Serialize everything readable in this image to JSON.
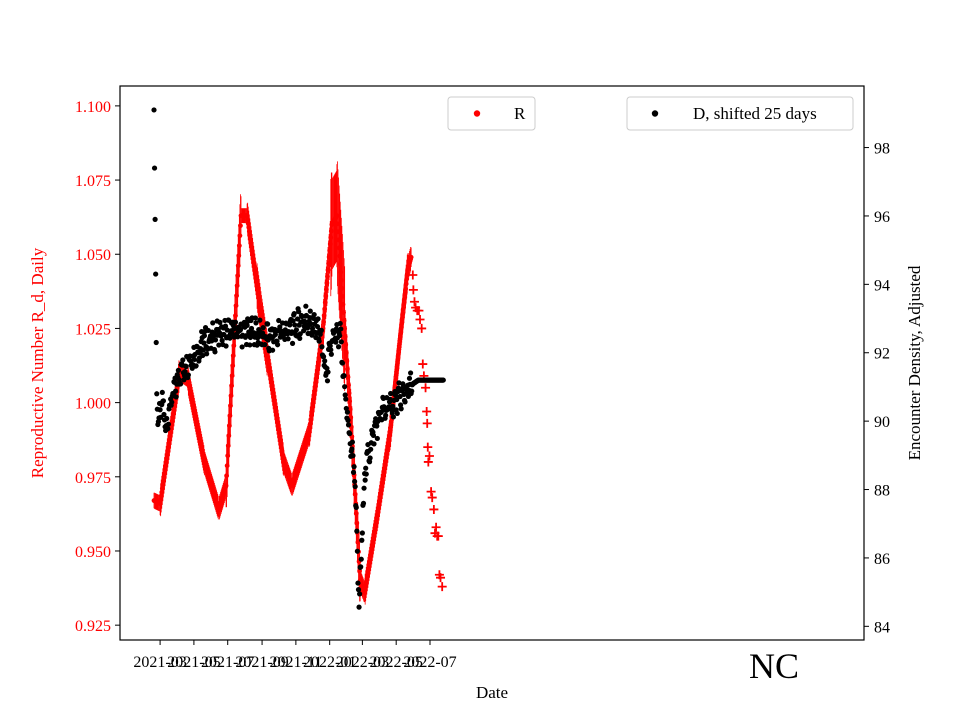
{
  "chart_data": {
    "type": "scatter",
    "state_label": "NC",
    "xlabel": "Date",
    "ylabel_left": "Reproductive Number R_d, Daily",
    "ylabel_right": "Encounter Density, Adjusted",
    "x_ticks": [
      "2021-03",
      "2021-05",
      "2021-07",
      "2021-09",
      "2021-11",
      "2022-01",
      "2022-03",
      "2022-05",
      "2022-07"
    ],
    "y_left_ticks": [
      "0.925",
      "0.950",
      "0.975",
      "1.000",
      "1.025",
      "1.050",
      "1.075",
      "1.100"
    ],
    "y_right_ticks": [
      "84",
      "86",
      "88",
      "90",
      "92",
      "94",
      "96",
      "98"
    ],
    "y_left_range": [
      0.92,
      1.1067
    ],
    "y_right_range": [
      83.6,
      99.8
    ],
    "legend": {
      "r_label": "R",
      "d_label": "D, shifted 25 days"
    },
    "colors": {
      "r_series": "#ff0000",
      "d_series": "#000000",
      "left_axis": "#ff0000"
    },
    "series_R_anchor_points": [
      [
        "2021-02-18",
        0.967
      ],
      [
        "2021-03-01",
        0.966
      ],
      [
        "2021-03-20",
        0.99
      ],
      [
        "2021-04-05",
        1.01
      ],
      [
        "2021-04-20",
        1.008
      ],
      [
        "2021-05-20",
        0.98
      ],
      [
        "2021-06-15",
        0.964
      ],
      [
        "2021-06-28",
        0.972
      ],
      [
        "2021-07-25",
        1.063
      ],
      [
        "2021-08-05",
        1.063
      ],
      [
        "2021-08-30",
        1.03
      ],
      [
        "2021-10-10",
        0.98
      ],
      [
        "2021-10-25",
        0.972
      ],
      [
        "2021-11-25",
        0.99
      ],
      [
        "2021-12-20",
        1.025
      ],
      [
        "2022-01-05",
        1.06
      ],
      [
        "2022-01-14",
        1.063
      ],
      [
        "2022-02-08",
        0.995
      ],
      [
        "2022-02-25",
        0.94
      ],
      [
        "2022-03-05",
        0.936
      ],
      [
        "2022-03-28",
        0.962
      ],
      [
        "2022-04-20",
        0.99
      ],
      [
        "2022-05-10",
        1.025
      ],
      [
        "2022-05-22",
        1.045
      ],
      [
        "2022-05-28",
        1.049
      ]
    ],
    "series_R_projection": [
      [
        "2022-05-31",
        1.043
      ],
      [
        "2022-06-01",
        1.038
      ],
      [
        "2022-06-03",
        1.034
      ],
      [
        "2022-06-05",
        1.032
      ],
      [
        "2022-06-08",
        1.031
      ],
      [
        "2022-06-11",
        1.031
      ],
      [
        "2022-06-13",
        1.028
      ],
      [
        "2022-06-16",
        1.025
      ],
      [
        "2022-06-18",
        1.013
      ],
      [
        "2022-06-20",
        1.009
      ],
      [
        "2022-06-23",
        1.005
      ],
      [
        "2022-06-25",
        0.997
      ],
      [
        "2022-06-26",
        0.993
      ],
      [
        "2022-06-27",
        0.985
      ],
      [
        "2022-06-28",
        0.98
      ],
      [
        "2022-06-30",
        0.982
      ],
      [
        "2022-07-03",
        0.97
      ],
      [
        "2022-07-05",
        0.968
      ],
      [
        "2022-07-08",
        0.964
      ],
      [
        "2022-07-10",
        0.956
      ],
      [
        "2022-07-12",
        0.958
      ],
      [
        "2022-07-14",
        0.955
      ],
      [
        "2022-07-16",
        0.955
      ],
      [
        "2022-07-18",
        0.942
      ],
      [
        "2022-07-20",
        0.941
      ],
      [
        "2022-07-23",
        0.938
      ]
    ],
    "series_D_anchor_points": [
      [
        "2021-02-18",
        99.1
      ],
      [
        "2021-02-19",
        97.4
      ],
      [
        "2021-02-20",
        95.9
      ],
      [
        "2021-02-21",
        94.3
      ],
      [
        "2021-02-22",
        92.3
      ],
      [
        "2021-02-23",
        90.8
      ],
      [
        "2021-02-25",
        89.9
      ],
      [
        "2021-03-05",
        90.6
      ],
      [
        "2021-03-12",
        89.8
      ],
      [
        "2021-03-20",
        90.5
      ],
      [
        "2021-04-05",
        91.4
      ],
      [
        "2021-04-25",
        91.8
      ],
      [
        "2021-05-20",
        92.3
      ],
      [
        "2021-06-20",
        92.6
      ],
      [
        "2021-07-20",
        92.6
      ],
      [
        "2021-08-20",
        92.6
      ],
      [
        "2021-09-15",
        92.4
      ],
      [
        "2021-10-05",
        92.6
      ],
      [
        "2021-10-25",
        92.7
      ],
      [
        "2021-11-20",
        93.0
      ],
      [
        "2021-12-15",
        92.6
      ],
      [
        "2021-12-25",
        91.3
      ],
      [
        "2022-01-05",
        92.3
      ],
      [
        "2022-01-20",
        92.5
      ],
      [
        "2022-01-25",
        91.5
      ],
      [
        "2022-02-05",
        89.6
      ],
      [
        "2022-02-15",
        88.6
      ],
      [
        "2022-02-23",
        84.5
      ],
      [
        "2022-03-05",
        88.5
      ],
      [
        "2022-03-20",
        89.6
      ],
      [
        "2022-04-05",
        90.3
      ],
      [
        "2022-04-25",
        90.5
      ],
      [
        "2022-05-15",
        90.8
      ],
      [
        "2022-06-01",
        91.1
      ],
      [
        "2022-06-10",
        91.2
      ],
      [
        "2022-07-25",
        91.2
      ]
    ]
  }
}
